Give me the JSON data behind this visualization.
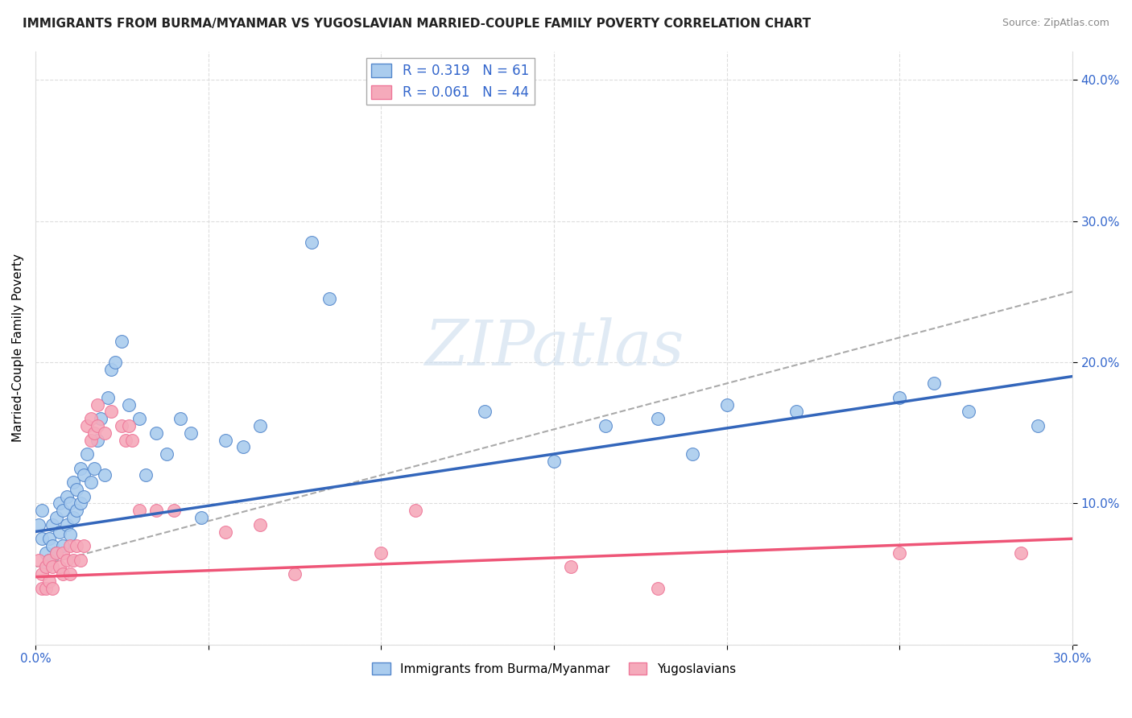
{
  "title": "IMMIGRANTS FROM BURMA/MYANMAR VS YUGOSLAVIAN MARRIED-COUPLE FAMILY POVERTY CORRELATION CHART",
  "source": "Source: ZipAtlas.com",
  "ylabel": "Married-Couple Family Poverty",
  "blue_label": "Immigrants from Burma/Myanmar",
  "pink_label": "Yugoslavians",
  "blue_R": 0.319,
  "blue_N": 61,
  "pink_R": 0.061,
  "pink_N": 44,
  "blue_color": "#aaccee",
  "pink_color": "#f5aabb",
  "blue_edge_color": "#5588cc",
  "pink_edge_color": "#ee7799",
  "blue_line_color": "#3366bb",
  "pink_line_color": "#ee5577",
  "gray_dash_color": "#aaaaaa",
  "legend_text_color": "#3366cc",
  "axis_label_color": "#3366cc",
  "title_color": "#222222",
  "source_color": "#888888",
  "grid_color": "#dddddd",
  "xlim": [
    0.0,
    0.3
  ],
  "ylim": [
    0.0,
    0.42
  ],
  "blue_trend": [
    0.08,
    0.19
  ],
  "pink_trend": [
    0.048,
    0.075
  ],
  "gray_dash": [
    0.055,
    0.25
  ],
  "blue_scatter_x": [
    0.001,
    0.002,
    0.002,
    0.003,
    0.003,
    0.004,
    0.004,
    0.005,
    0.005,
    0.006,
    0.006,
    0.007,
    0.007,
    0.008,
    0.008,
    0.009,
    0.009,
    0.01,
    0.01,
    0.011,
    0.011,
    0.012,
    0.012,
    0.013,
    0.013,
    0.014,
    0.014,
    0.015,
    0.016,
    0.017,
    0.018,
    0.019,
    0.02,
    0.021,
    0.022,
    0.023,
    0.025,
    0.027,
    0.03,
    0.032,
    0.035,
    0.038,
    0.042,
    0.045,
    0.048,
    0.055,
    0.06,
    0.065,
    0.08,
    0.085,
    0.13,
    0.15,
    0.165,
    0.18,
    0.19,
    0.2,
    0.22,
    0.25,
    0.26,
    0.27,
    0.29
  ],
  "blue_scatter_y": [
    0.085,
    0.095,
    0.075,
    0.065,
    0.055,
    0.075,
    0.06,
    0.085,
    0.07,
    0.09,
    0.065,
    0.1,
    0.08,
    0.095,
    0.07,
    0.105,
    0.085,
    0.1,
    0.078,
    0.115,
    0.09,
    0.11,
    0.095,
    0.125,
    0.1,
    0.12,
    0.105,
    0.135,
    0.115,
    0.125,
    0.145,
    0.16,
    0.12,
    0.175,
    0.195,
    0.2,
    0.215,
    0.17,
    0.16,
    0.12,
    0.15,
    0.135,
    0.16,
    0.15,
    0.09,
    0.145,
    0.14,
    0.155,
    0.285,
    0.245,
    0.165,
    0.13,
    0.155,
    0.16,
    0.135,
    0.17,
    0.165,
    0.175,
    0.185,
    0.165,
    0.155
  ],
  "pink_scatter_x": [
    0.001,
    0.002,
    0.002,
    0.003,
    0.003,
    0.004,
    0.004,
    0.005,
    0.005,
    0.006,
    0.007,
    0.008,
    0.008,
    0.009,
    0.01,
    0.01,
    0.011,
    0.012,
    0.013,
    0.014,
    0.015,
    0.016,
    0.016,
    0.017,
    0.018,
    0.018,
    0.02,
    0.022,
    0.025,
    0.026,
    0.027,
    0.028,
    0.03,
    0.035,
    0.04,
    0.055,
    0.065,
    0.075,
    0.1,
    0.11,
    0.155,
    0.18,
    0.25,
    0.285
  ],
  "pink_scatter_y": [
    0.06,
    0.05,
    0.04,
    0.055,
    0.04,
    0.06,
    0.045,
    0.055,
    0.04,
    0.065,
    0.055,
    0.065,
    0.05,
    0.06,
    0.07,
    0.05,
    0.06,
    0.07,
    0.06,
    0.07,
    0.155,
    0.16,
    0.145,
    0.15,
    0.155,
    0.17,
    0.15,
    0.165,
    0.155,
    0.145,
    0.155,
    0.145,
    0.095,
    0.095,
    0.095,
    0.08,
    0.085,
    0.05,
    0.065,
    0.095,
    0.055,
    0.04,
    0.065,
    0.065
  ]
}
